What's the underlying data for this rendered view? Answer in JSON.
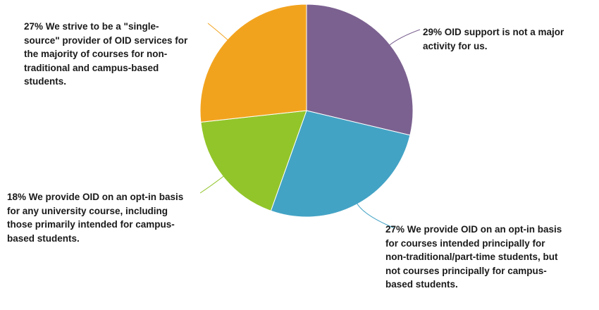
{
  "chart_data": {
    "type": "pie",
    "title": "",
    "legend": "none",
    "slices": [
      {
        "percent": 29,
        "label": "29% OID support is not a major activity for us.",
        "color": "#7b6190"
      },
      {
        "percent": 27,
        "label": "27% We provide OID on an opt-in basis for courses intended principally for non-traditional/part-time students, but not courses principally for campus-based students.",
        "color": "#43a3c5"
      },
      {
        "percent": 18,
        "label": "18% We provide OID on an opt-in basis for any university course, including those primarily intended for campus-based students.",
        "color": "#92c52a"
      },
      {
        "percent": 27,
        "label": "27% We strive to be a \"single-source\" provider of OID services for the majority of courses for non-traditional and campus-based students.",
        "color": "#f2a31e"
      }
    ]
  }
}
